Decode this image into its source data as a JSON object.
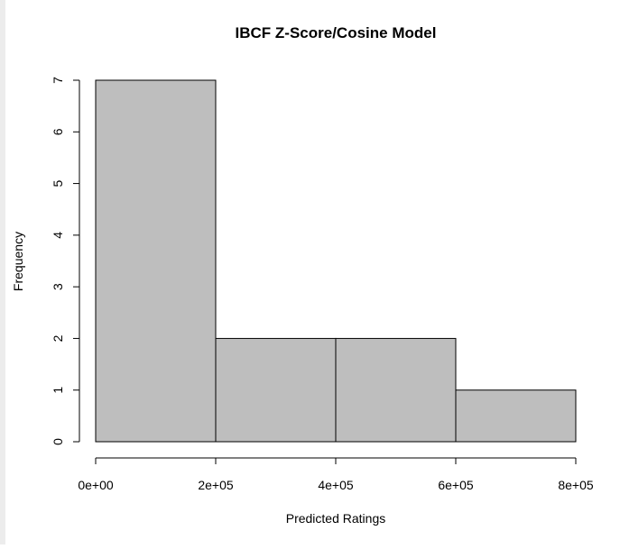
{
  "chart_data": {
    "type": "bar",
    "title": "IBCF Z-Score/Cosine Model",
    "xlabel": "Predicted Ratings",
    "ylabel": "Frequency",
    "bins": [
      {
        "start": 0,
        "end": 200000,
        "count": 7
      },
      {
        "start": 200000,
        "end": 400000,
        "count": 2
      },
      {
        "start": 400000,
        "end": 600000,
        "count": 2
      },
      {
        "start": 600000,
        "end": 800000,
        "count": 1
      }
    ],
    "xlim": [
      0,
      800000
    ],
    "ylim": [
      0,
      7
    ],
    "x_ticks": [
      0,
      200000,
      400000,
      600000,
      800000
    ],
    "x_tick_labels": [
      "0e+00",
      "2e+05",
      "4e+05",
      "6e+05",
      "8e+05"
    ],
    "y_ticks": [
      0,
      1,
      2,
      3,
      4,
      5,
      6,
      7
    ],
    "y_tick_labels": [
      "0",
      "1",
      "2",
      "3",
      "4",
      "5",
      "6",
      "7"
    ],
    "grid": false,
    "legend": "none",
    "bar_color": "#bebebe",
    "border_color": "#000000"
  }
}
